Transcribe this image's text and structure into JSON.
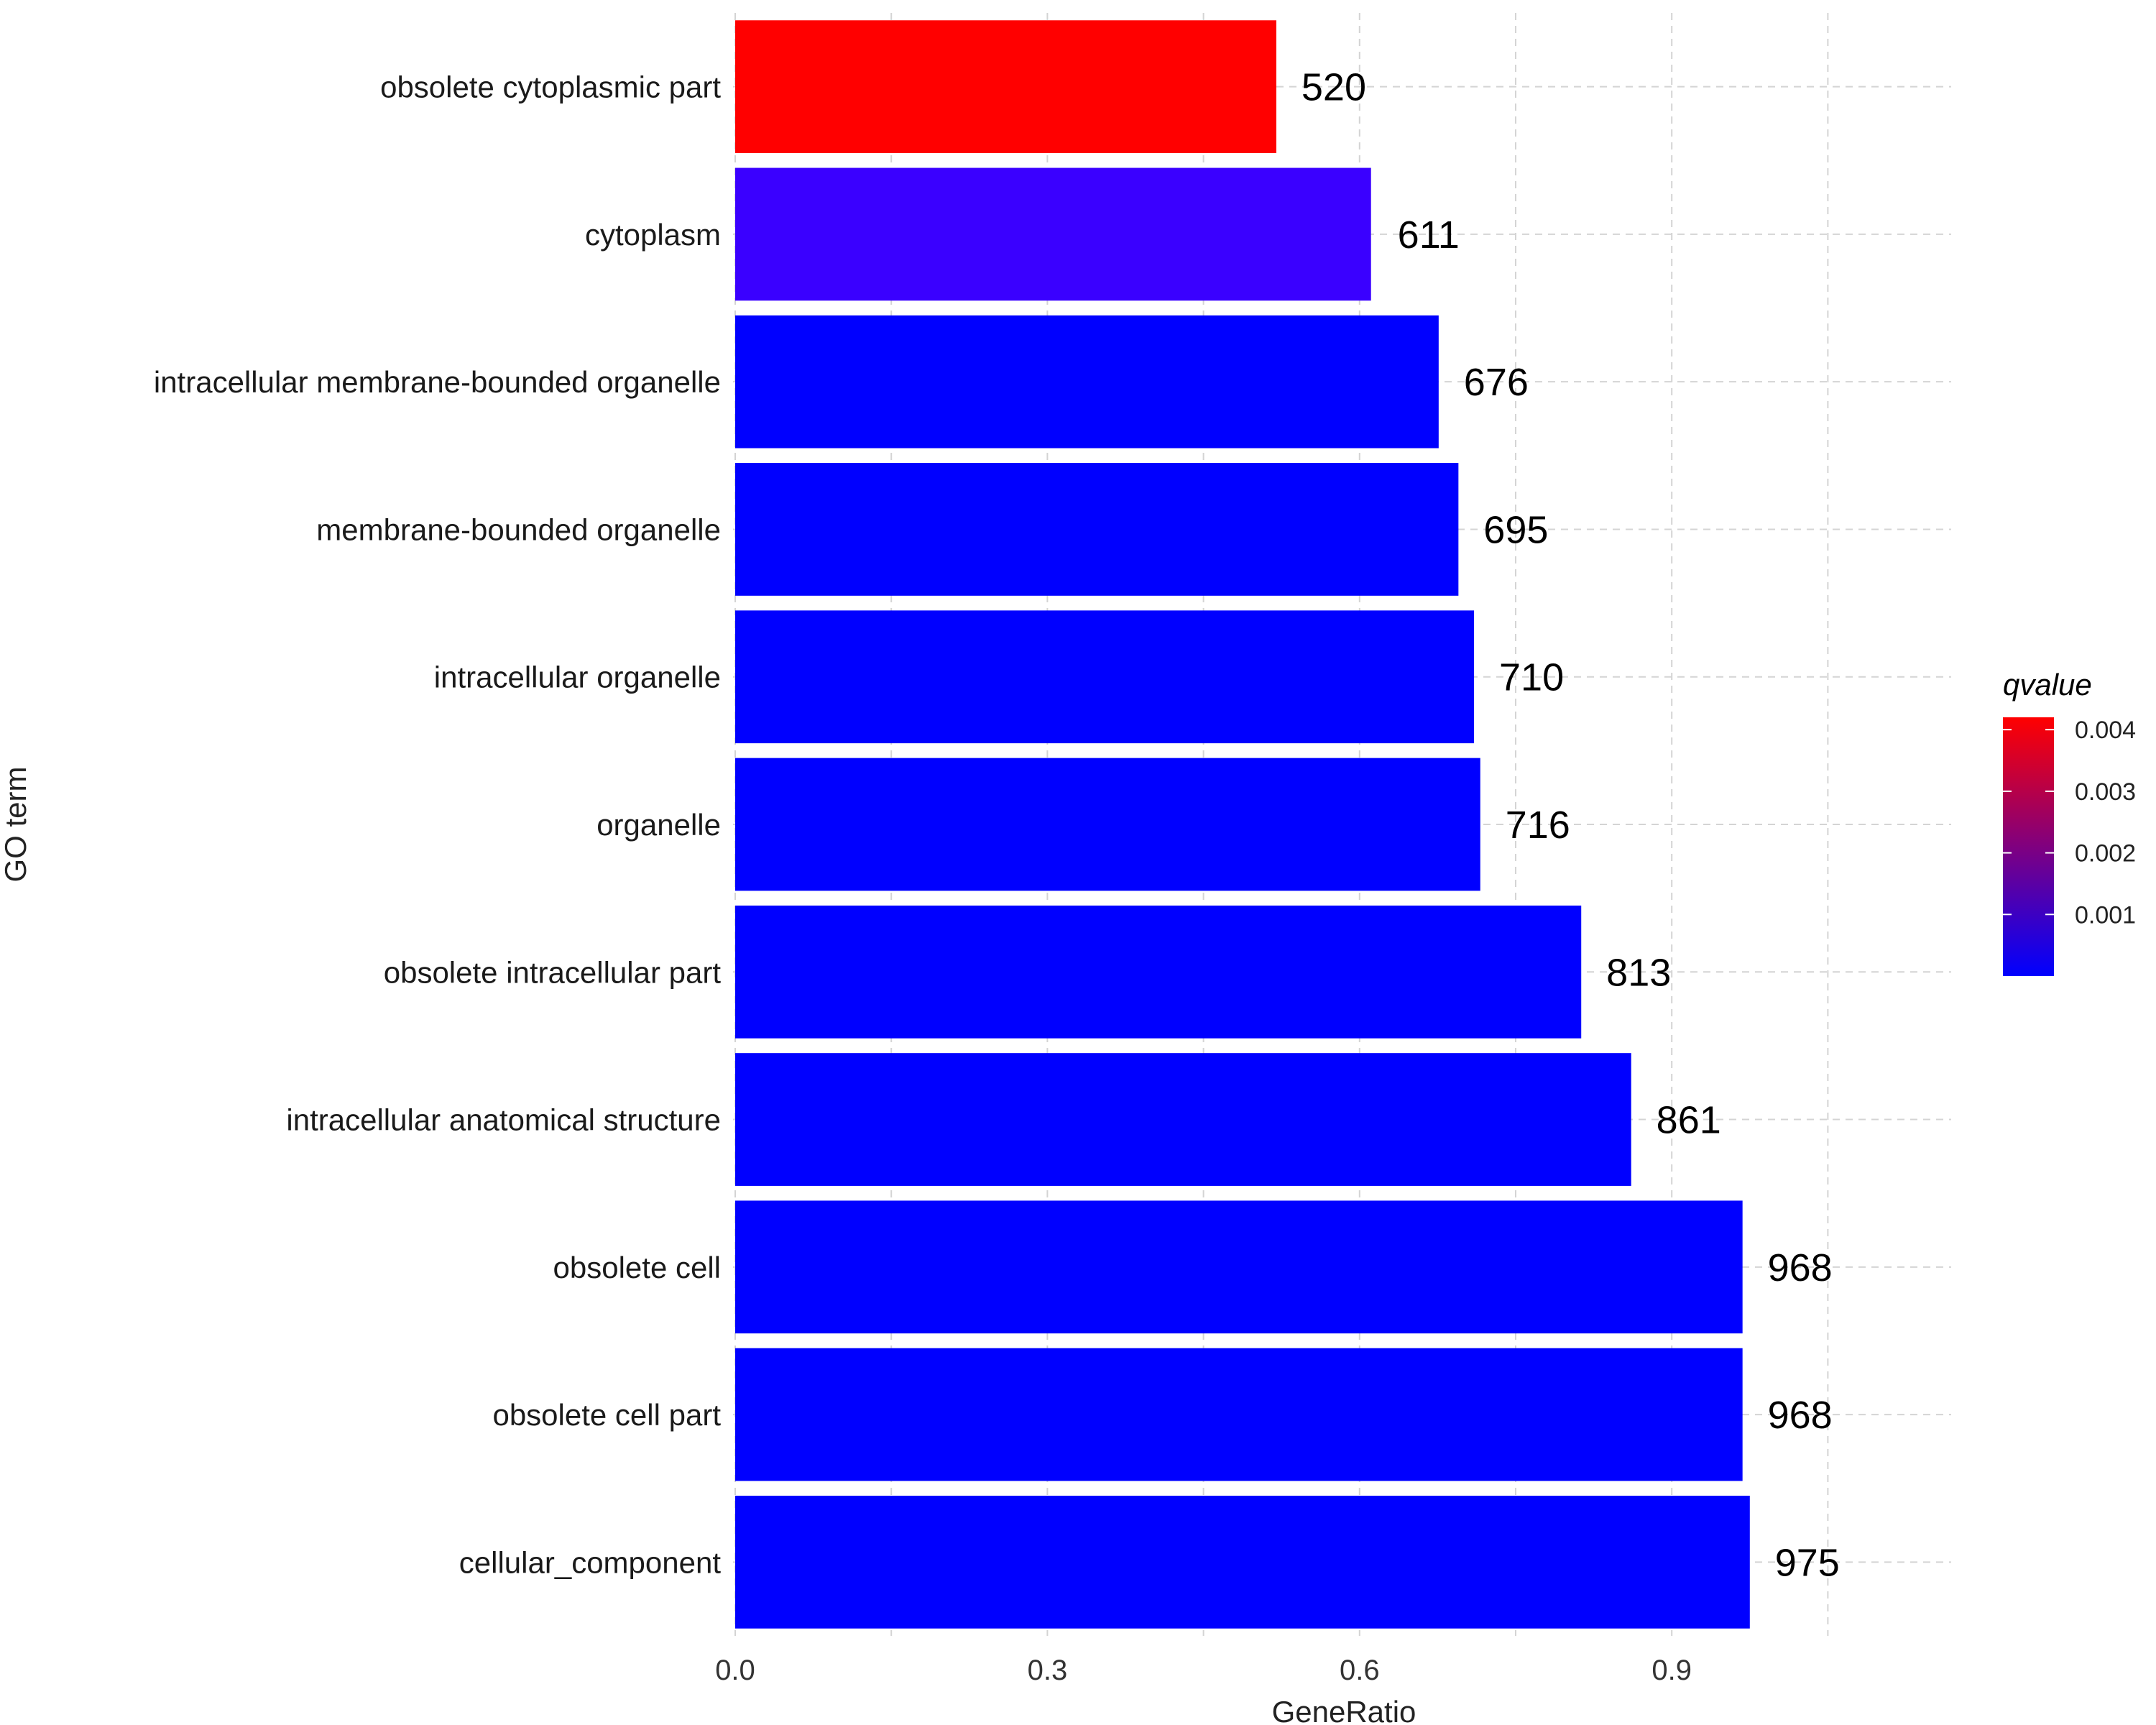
{
  "chart_data": {
    "type": "bar",
    "orientation": "horizontal",
    "categories": [
      "obsolete cytoplasmic part",
      "cytoplasm",
      "intracellular membrane-bounded organelle",
      "membrane-bounded organelle",
      "intracellular organelle",
      "organelle",
      "obsolete intracellular part",
      "intracellular anatomical structure",
      "obsolete cell",
      "obsolete cell part",
      "cellular_component"
    ],
    "values": [
      0.52,
      0.611,
      0.676,
      0.695,
      0.71,
      0.716,
      0.813,
      0.861,
      0.968,
      0.968,
      0.975
    ],
    "counts": [
      "520",
      "611",
      "676",
      "695",
      "710",
      "716",
      "813",
      "861",
      "968",
      "968",
      "975"
    ],
    "bar_colors": [
      "#ff0000",
      "#3a00ff",
      "#0000ff",
      "#0000ff",
      "#0000ff",
      "#0000ff",
      "#0000ff",
      "#0000ff",
      "#0000ff",
      "#0000ff",
      "#0000ff"
    ],
    "xlabel": "GeneRatio",
    "ylabel": "GO term",
    "xlim": [
      0,
      1.05
    ],
    "xticks": [
      0.0,
      0.3,
      0.6,
      0.9
    ],
    "xtick_labels": [
      "0.0",
      "0.3",
      "0.6",
      "0.9"
    ],
    "grid": true,
    "legend": {
      "title": "qvalue",
      "placement": "right",
      "type": "colorbar",
      "range": [
        0,
        0.0042
      ],
      "low_color": "#0000ff",
      "high_color": "#ff0000",
      "ticks": [
        0.004,
        0.003,
        0.002,
        0.001
      ],
      "tick_labels": [
        "0.004",
        "0.003",
        "0.002",
        "0.001"
      ]
    }
  }
}
